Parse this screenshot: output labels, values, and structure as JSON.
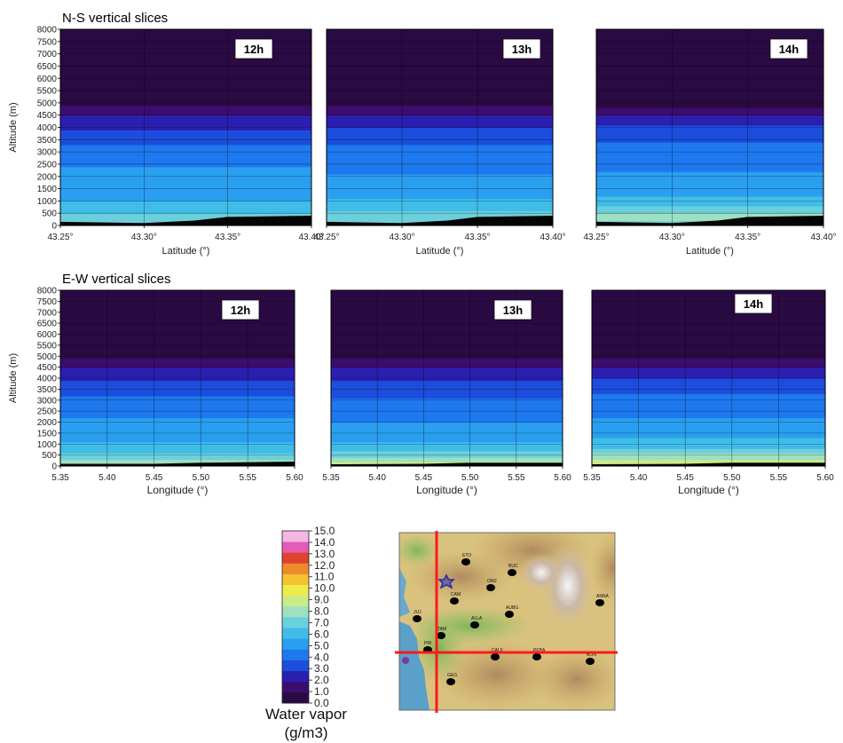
{
  "chart_data": [
    {
      "type": "heatmap",
      "section": "N-S vertical slices",
      "title": "12h",
      "xlabel": "Latitude (°)",
      "ylabel": "Altitude (m)",
      "xlim": [
        43.25,
        43.4
      ],
      "ylim": [
        0,
        8000
      ],
      "xticks": [
        "43.25°",
        "43.30°",
        "43.35°",
        "43.40°"
      ],
      "yticks": [
        "0",
        "500",
        "1000",
        "1500",
        "2000",
        "2500",
        "3000",
        "3500",
        "4000",
        "4500",
        "5000",
        "5500",
        "6000",
        "6500",
        "7000",
        "7500",
        "8000"
      ],
      "profile": [
        [
          0,
          6.5
        ],
        [
          300,
          8.0
        ],
        [
          600,
          6.5
        ],
        [
          1200,
          5.8
        ],
        [
          2000,
          5.3
        ],
        [
          2500,
          4.9
        ],
        [
          3000,
          4.3
        ],
        [
          3500,
          3.7
        ],
        [
          4000,
          2.9
        ],
        [
          4500,
          2.0
        ],
        [
          4900,
          1.2
        ],
        [
          5100,
          0.3
        ],
        [
          8000,
          0.2
        ]
      ],
      "terrain": [
        [
          43.25,
          150
        ],
        [
          43.3,
          100
        ],
        [
          43.33,
          200
        ],
        [
          43.35,
          350
        ],
        [
          43.4,
          400
        ]
      ]
    },
    {
      "type": "heatmap",
      "section": "N-S vertical slices",
      "title": "13h",
      "xlabel": "Latitude (°)",
      "ylabel": "Altitude (m)",
      "xlim": [
        43.25,
        43.4
      ],
      "ylim": [
        0,
        8000
      ],
      "xticks": [
        "43.25°",
        "43.30°",
        "43.35°",
        "43.40°"
      ],
      "yticks": [],
      "profile": [
        [
          0,
          6.5
        ],
        [
          300,
          8.0
        ],
        [
          600,
          6.8
        ],
        [
          1200,
          5.8
        ],
        [
          2000,
          5.1
        ],
        [
          2500,
          4.7
        ],
        [
          3000,
          4.3
        ],
        [
          3500,
          3.8
        ],
        [
          4000,
          3.0
        ],
        [
          4500,
          2.0
        ],
        [
          4900,
          1.2
        ],
        [
          5100,
          0.3
        ],
        [
          8000,
          0.2
        ]
      ],
      "terrain": [
        [
          43.25,
          150
        ],
        [
          43.3,
          100
        ],
        [
          43.33,
          200
        ],
        [
          43.35,
          350
        ],
        [
          43.4,
          400
        ]
      ]
    },
    {
      "type": "heatmap",
      "section": "N-S vertical slices",
      "title": "14h",
      "xlabel": "Latitude (°)",
      "ylabel": "Altitude (m)",
      "xlim": [
        43.25,
        43.4
      ],
      "ylim": [
        0,
        8000
      ],
      "xticks": [
        "43.25°",
        "43.30°",
        "43.35°",
        "43.40°"
      ],
      "yticks": [],
      "profile": [
        [
          0,
          7.0
        ],
        [
          300,
          8.5
        ],
        [
          700,
          7.2
        ],
        [
          1200,
          6.0
        ],
        [
          2000,
          5.1
        ],
        [
          2500,
          4.8
        ],
        [
          3000,
          4.4
        ],
        [
          3500,
          3.9
        ],
        [
          4000,
          3.1
        ],
        [
          4500,
          2.1
        ],
        [
          4800,
          1.2
        ],
        [
          5000,
          0.3
        ],
        [
          8000,
          0.2
        ]
      ],
      "terrain": [
        [
          43.25,
          150
        ],
        [
          43.3,
          100
        ],
        [
          43.33,
          200
        ],
        [
          43.35,
          350
        ],
        [
          43.4,
          400
        ]
      ]
    },
    {
      "type": "heatmap",
      "section": "E-W vertical slices",
      "title": "12h",
      "xlabel": "Longitude (°)",
      "ylabel": "Altitude (m)",
      "xlim": [
        5.35,
        5.6
      ],
      "ylim": [
        0,
        8000
      ],
      "xticks": [
        "5.35",
        "5.40",
        "5.45",
        "5.50",
        "5.55",
        "5.60"
      ],
      "yticks": [
        "0",
        "500",
        "1000",
        "1500",
        "2000",
        "2500",
        "3000",
        "3500",
        "4000",
        "4500",
        "5000",
        "5500",
        "6000",
        "6500",
        "7000",
        "7500",
        "8000"
      ],
      "profile": [
        [
          0,
          9.0
        ],
        [
          400,
          7.5
        ],
        [
          800,
          6.5
        ],
        [
          1200,
          5.9
        ],
        [
          2000,
          5.2
        ],
        [
          2500,
          4.7
        ],
        [
          3000,
          4.2
        ],
        [
          3500,
          3.7
        ],
        [
          4000,
          2.9
        ],
        [
          4500,
          2.0
        ],
        [
          4900,
          1.2
        ],
        [
          5100,
          0.3
        ],
        [
          8000,
          0.2
        ]
      ],
      "terrain": [
        [
          5.35,
          100
        ],
        [
          5.45,
          100
        ],
        [
          5.5,
          150
        ],
        [
          5.6,
          200
        ]
      ]
    },
    {
      "type": "heatmap",
      "section": "E-W vertical slices",
      "title": "13h",
      "xlabel": "Longitude (°)",
      "ylabel": "Altitude (m)",
      "xlim": [
        5.35,
        5.6
      ],
      "ylim": [
        0,
        8000
      ],
      "xticks": [
        "5.35",
        "5.40",
        "5.45",
        "5.50",
        "5.55",
        "5.60"
      ],
      "yticks": [],
      "profile": [
        [
          0,
          9.5
        ],
        [
          300,
          8.5
        ],
        [
          700,
          7.0
        ],
        [
          1200,
          5.8
        ],
        [
          2000,
          5.0
        ],
        [
          2500,
          4.5
        ],
        [
          3000,
          4.1
        ],
        [
          3500,
          3.6
        ],
        [
          4000,
          2.9
        ],
        [
          4500,
          2.0
        ],
        [
          4900,
          1.2
        ],
        [
          5100,
          0.3
        ],
        [
          8000,
          0.2
        ]
      ],
      "terrain": [
        [
          5.35,
          80
        ],
        [
          5.45,
          100
        ],
        [
          5.5,
          150
        ],
        [
          5.6,
          150
        ]
      ]
    },
    {
      "type": "heatmap",
      "section": "E-W vertical slices",
      "title": "14h",
      "xlabel": "Longitude (°)",
      "ylabel": "Altitude (m)",
      "xlim": [
        5.35,
        5.6
      ],
      "ylim": [
        0,
        8000
      ],
      "xticks": [
        "5.35",
        "5.40",
        "5.45",
        "5.50",
        "5.55",
        "5.60"
      ],
      "yticks": [],
      "profile": [
        [
          0,
          10.0
        ],
        [
          300,
          9.0
        ],
        [
          800,
          7.0
        ],
        [
          1300,
          5.9
        ],
        [
          2000,
          5.2
        ],
        [
          2500,
          4.6
        ],
        [
          3000,
          4.2
        ],
        [
          3500,
          3.8
        ],
        [
          4000,
          3.0
        ],
        [
          4500,
          2.1
        ],
        [
          4900,
          1.2
        ],
        [
          5100,
          0.3
        ],
        [
          8000,
          0.2
        ]
      ],
      "terrain": [
        [
          5.35,
          80
        ],
        [
          5.45,
          100
        ],
        [
          5.5,
          150
        ],
        [
          5.6,
          150
        ]
      ]
    }
  ],
  "sections": {
    "ns_title": "N-S vertical slices",
    "ew_title": "E-W vertical slices"
  },
  "colorbar": {
    "title_line1": "Water vapor",
    "title_line2": "(g/m3)",
    "min": 0,
    "max": 15,
    "step": 1,
    "tick_labels": [
      "0.0",
      "1.0",
      "2.0",
      "3.0",
      "4.0",
      "5.0",
      "6.0",
      "7.0",
      "8.0",
      "9.0",
      "10.0",
      "11.0",
      "12.0",
      "13.0",
      "14.0",
      "15.0"
    ],
    "colors": [
      "#2a0a42",
      "#3c0d6e",
      "#2b1fb0",
      "#1c4ddc",
      "#1e78ee",
      "#2a9ff0",
      "#3fbde8",
      "#6cd0dc",
      "#9ee0c0",
      "#c8ec88",
      "#eeec4a",
      "#f4c234",
      "#ef8a2a",
      "#e0422e",
      "#e45cb6",
      "#f4b6e2"
    ]
  },
  "map": {
    "stations": [
      "ETO",
      "OM2",
      "BUC",
      "CAM",
      "JUJ",
      "ALLA",
      "AUBG",
      "TAM",
      "PRI",
      "CALE",
      "PEBA",
      "BON",
      "ANNA",
      "GEG"
    ],
    "marker_colors": {
      "station": "#000000",
      "star": "#3a35c8",
      "purple": "#7a3aa0",
      "cross": "#ff1a1a"
    }
  }
}
